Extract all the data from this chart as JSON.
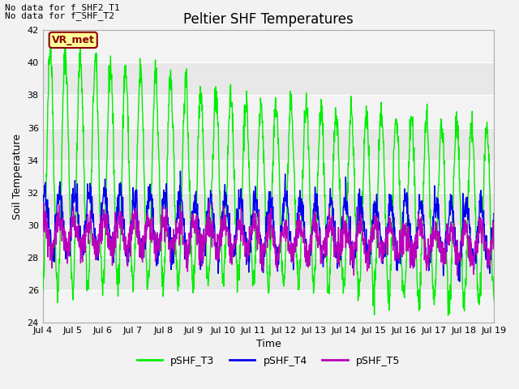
{
  "title": "Peltier SHF Temperatures",
  "xlabel": "Time",
  "ylabel": "Soil Temperature",
  "annotations": [
    "No data for f_SHF2_T1",
    "No data for f_SHF_T2"
  ],
  "vr_met_label": "VR_met",
  "ylim": [
    24,
    42
  ],
  "yticks": [
    24,
    26,
    28,
    30,
    32,
    34,
    36,
    38,
    40,
    42
  ],
  "xtick_labels": [
    "Jul 4",
    "Jul 5",
    "Jul 6",
    "Jul 7",
    "Jul 8",
    "Jul 9",
    "Jul 10",
    "Jul 11",
    "Jul 12",
    "Jul 13",
    "Jul 14",
    "Jul 15",
    "Jul 16",
    "Jul 17",
    "Jul 18",
    "Jul 19"
  ],
  "legend_labels": [
    "pSHF_T3",
    "pSHF_T4",
    "pSHF_T5"
  ],
  "colors": {
    "pSHF_T3": "#00EE00",
    "pSHF_T4": "#0000EE",
    "pSHF_T5": "#BB00BB"
  },
  "fig_bg_color": "#F2F2F2",
  "plot_bg_color": "#E8E8E8",
  "grid_color": "#FFFFFF",
  "alt_bg_color": "#DCDCDC",
  "title_fontsize": 12,
  "axis_label_fontsize": 9,
  "tick_fontsize": 8,
  "legend_fontsize": 9,
  "annot_fontsize": 8
}
